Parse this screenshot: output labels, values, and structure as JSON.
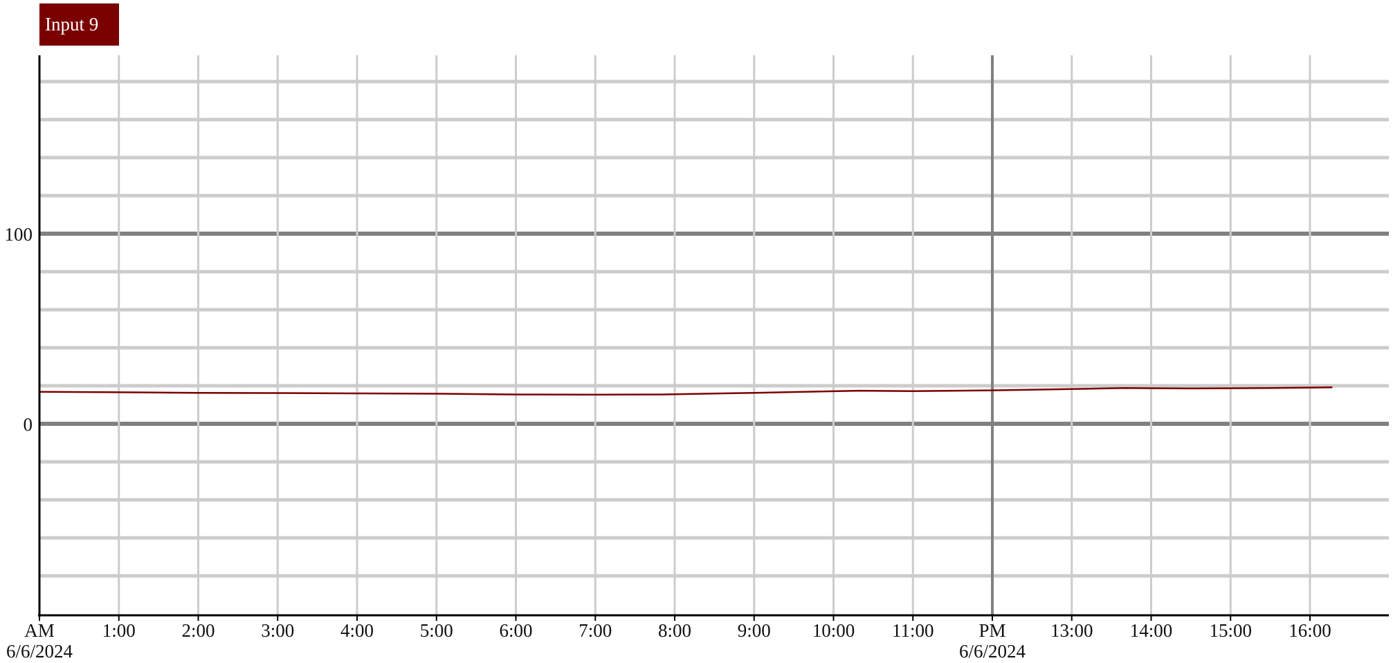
{
  "series_tag": "Input 9",
  "colors": {
    "series": "#7a0000",
    "grid_minor": "#cccccc",
    "grid_major": "#808080",
    "axis": "#000000",
    "background": "#ffffff"
  },
  "chart_data": {
    "type": "line",
    "title": "",
    "xlabel": "",
    "ylabel": "",
    "grid": true,
    "xlim": [
      "00:00",
      "17:00"
    ],
    "ylim": [
      -100,
      200
    ],
    "x_ticks": [
      {
        "label": "AM",
        "sub": "6/6/2024",
        "hour": 0,
        "major": true
      },
      {
        "label": "1:00",
        "hour": 1
      },
      {
        "label": "2:00",
        "hour": 2
      },
      {
        "label": "3:00",
        "hour": 3
      },
      {
        "label": "4:00",
        "hour": 4
      },
      {
        "label": "5:00",
        "hour": 5
      },
      {
        "label": "6:00",
        "hour": 6
      },
      {
        "label": "7:00",
        "hour": 7
      },
      {
        "label": "8:00",
        "hour": 8
      },
      {
        "label": "9:00",
        "hour": 9
      },
      {
        "label": "10:00",
        "hour": 10
      },
      {
        "label": "11:00",
        "hour": 11
      },
      {
        "label": "PM",
        "sub": "6/6/2024",
        "hour": 12,
        "major": true
      },
      {
        "label": "13:00",
        "hour": 13
      },
      {
        "label": "14:00",
        "hour": 14
      },
      {
        "label": "15:00",
        "hour": 15
      },
      {
        "label": "16:00",
        "hour": 16
      }
    ],
    "y_ticks": [
      {
        "label": "100",
        "value": 100
      },
      {
        "label": "0",
        "value": 0
      }
    ],
    "y_minor_step": 20,
    "series": [
      {
        "name": "Input 9",
        "x": [
          "00:00",
          "01:00",
          "02:00",
          "03:00",
          "04:00",
          "05:00",
          "06:00",
          "07:00",
          "07:50",
          "09:00",
          "10:20",
          "11:00",
          "12:00",
          "13:00",
          "13:40",
          "14:30",
          "15:30",
          "16:17"
        ],
        "values": [
          16.8,
          16.6,
          16.3,
          16.2,
          16.0,
          15.8,
          15.4,
          15.3,
          15.4,
          16.3,
          17.4,
          17.2,
          17.6,
          18.3,
          18.8,
          18.6,
          18.8,
          19.2
        ]
      }
    ]
  }
}
